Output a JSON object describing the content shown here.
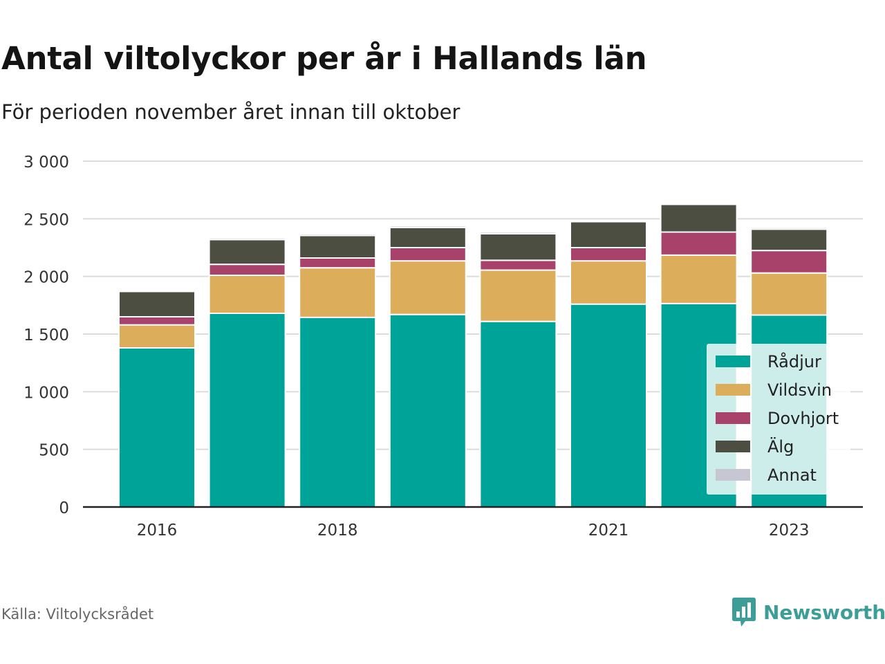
{
  "title": "Antal viltolyckor per år i Hallands län",
  "subtitle": "För perioden november året innan till oktober",
  "source": "Källa: Viltolycksrådet",
  "brand": "Newsworthy",
  "colors": {
    "Rådjur": "#00a398",
    "Vildsvin": "#dcad5b",
    "Dovhjort": "#a8426b",
    "Älg": "#4c4e41",
    "Annat": "#c7c7d4",
    "brand": "#3c9e96"
  },
  "chart_data": {
    "type": "bar",
    "stacked": true,
    "categories": [
      "2016",
      "2017",
      "2018",
      "2019",
      "2020",
      "2021",
      "2022",
      "2023"
    ],
    "x_tick_labels": [
      "2016",
      "",
      "2018",
      "",
      "",
      "2021",
      "",
      "2023"
    ],
    "series": [
      {
        "name": "Rådjur",
        "values": [
          1380,
          1680,
          1645,
          1670,
          1610,
          1760,
          1765,
          1665
        ]
      },
      {
        "name": "Vildsvin",
        "values": [
          200,
          330,
          430,
          465,
          445,
          375,
          420,
          365
        ]
      },
      {
        "name": "Dovhjort",
        "values": [
          70,
          95,
          85,
          115,
          85,
          115,
          200,
          195
        ]
      },
      {
        "name": "Älg",
        "values": [
          220,
          215,
          195,
          175,
          230,
          225,
          240,
          185
        ]
      },
      {
        "name": "Annat",
        "values": [
          5,
          15,
          15,
          15,
          15,
          10,
          5,
          15
        ]
      }
    ],
    "y_ticks": [
      "0",
      "500",
      "1 000",
      "1 500",
      "2 000",
      "2 500",
      "3 000"
    ],
    "ylim": [
      0,
      3000
    ],
    "grid": true,
    "legend": "bottom-right"
  }
}
